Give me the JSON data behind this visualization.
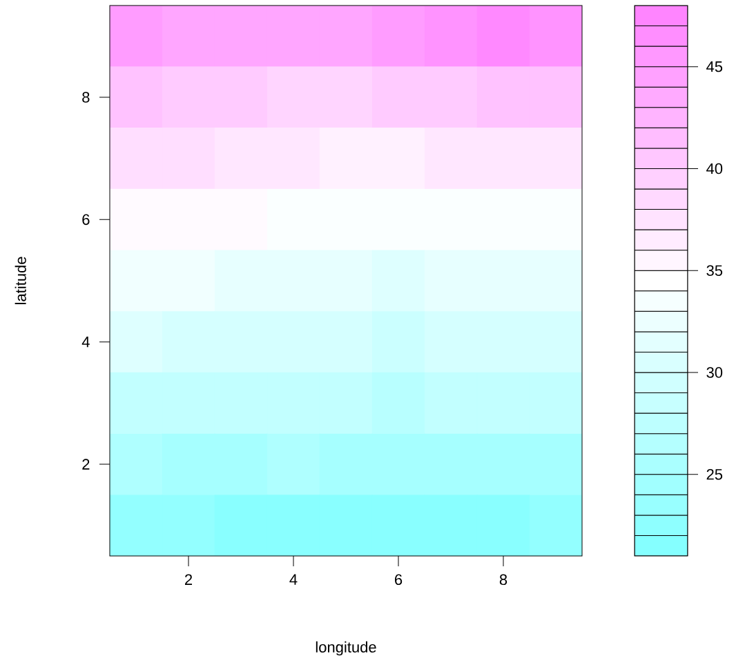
{
  "chart_data": {
    "type": "heatmap",
    "xlabel": "longitude",
    "ylabel": "latitude",
    "x": [
      1,
      2,
      3,
      4,
      5,
      6,
      7,
      8,
      9
    ],
    "y": [
      9,
      8,
      7,
      6,
      5,
      4,
      3,
      2,
      1
    ],
    "cells": [
      [
        45,
        44,
        44,
        44,
        44,
        45,
        46,
        47,
        46
      ],
      [
        41,
        40,
        40,
        39,
        39,
        40,
        40,
        41,
        41
      ],
      [
        38,
        38,
        37,
        37,
        36,
        36,
        37,
        37,
        37
      ],
      [
        35,
        35,
        35,
        34,
        34,
        34,
        34,
        34,
        34
      ],
      [
        33,
        33,
        32,
        32,
        32,
        31,
        32,
        32,
        32
      ],
      [
        31,
        30,
        30,
        30,
        30,
        29,
        30,
        30,
        30
      ],
      [
        28,
        28,
        28,
        28,
        28,
        27,
        28,
        28,
        28
      ],
      [
        26,
        25,
        25,
        26,
        25,
        25,
        25,
        25,
        25
      ],
      [
        23,
        23,
        22,
        22,
        22,
        22,
        22,
        22,
        23
      ]
    ],
    "colors": [
      "#80ffff",
      "#ffffff",
      "#ff80ff"
    ],
    "xlim": [
      0.5,
      9.5
    ],
    "ylim": [
      0.5,
      9.5
    ],
    "xticks": [
      2,
      4,
      6,
      8
    ],
    "yticks": [
      2,
      4,
      6,
      8
    ],
    "clim": [
      21,
      48
    ],
    "cticks": [
      25,
      30,
      35,
      40,
      45
    ]
  }
}
